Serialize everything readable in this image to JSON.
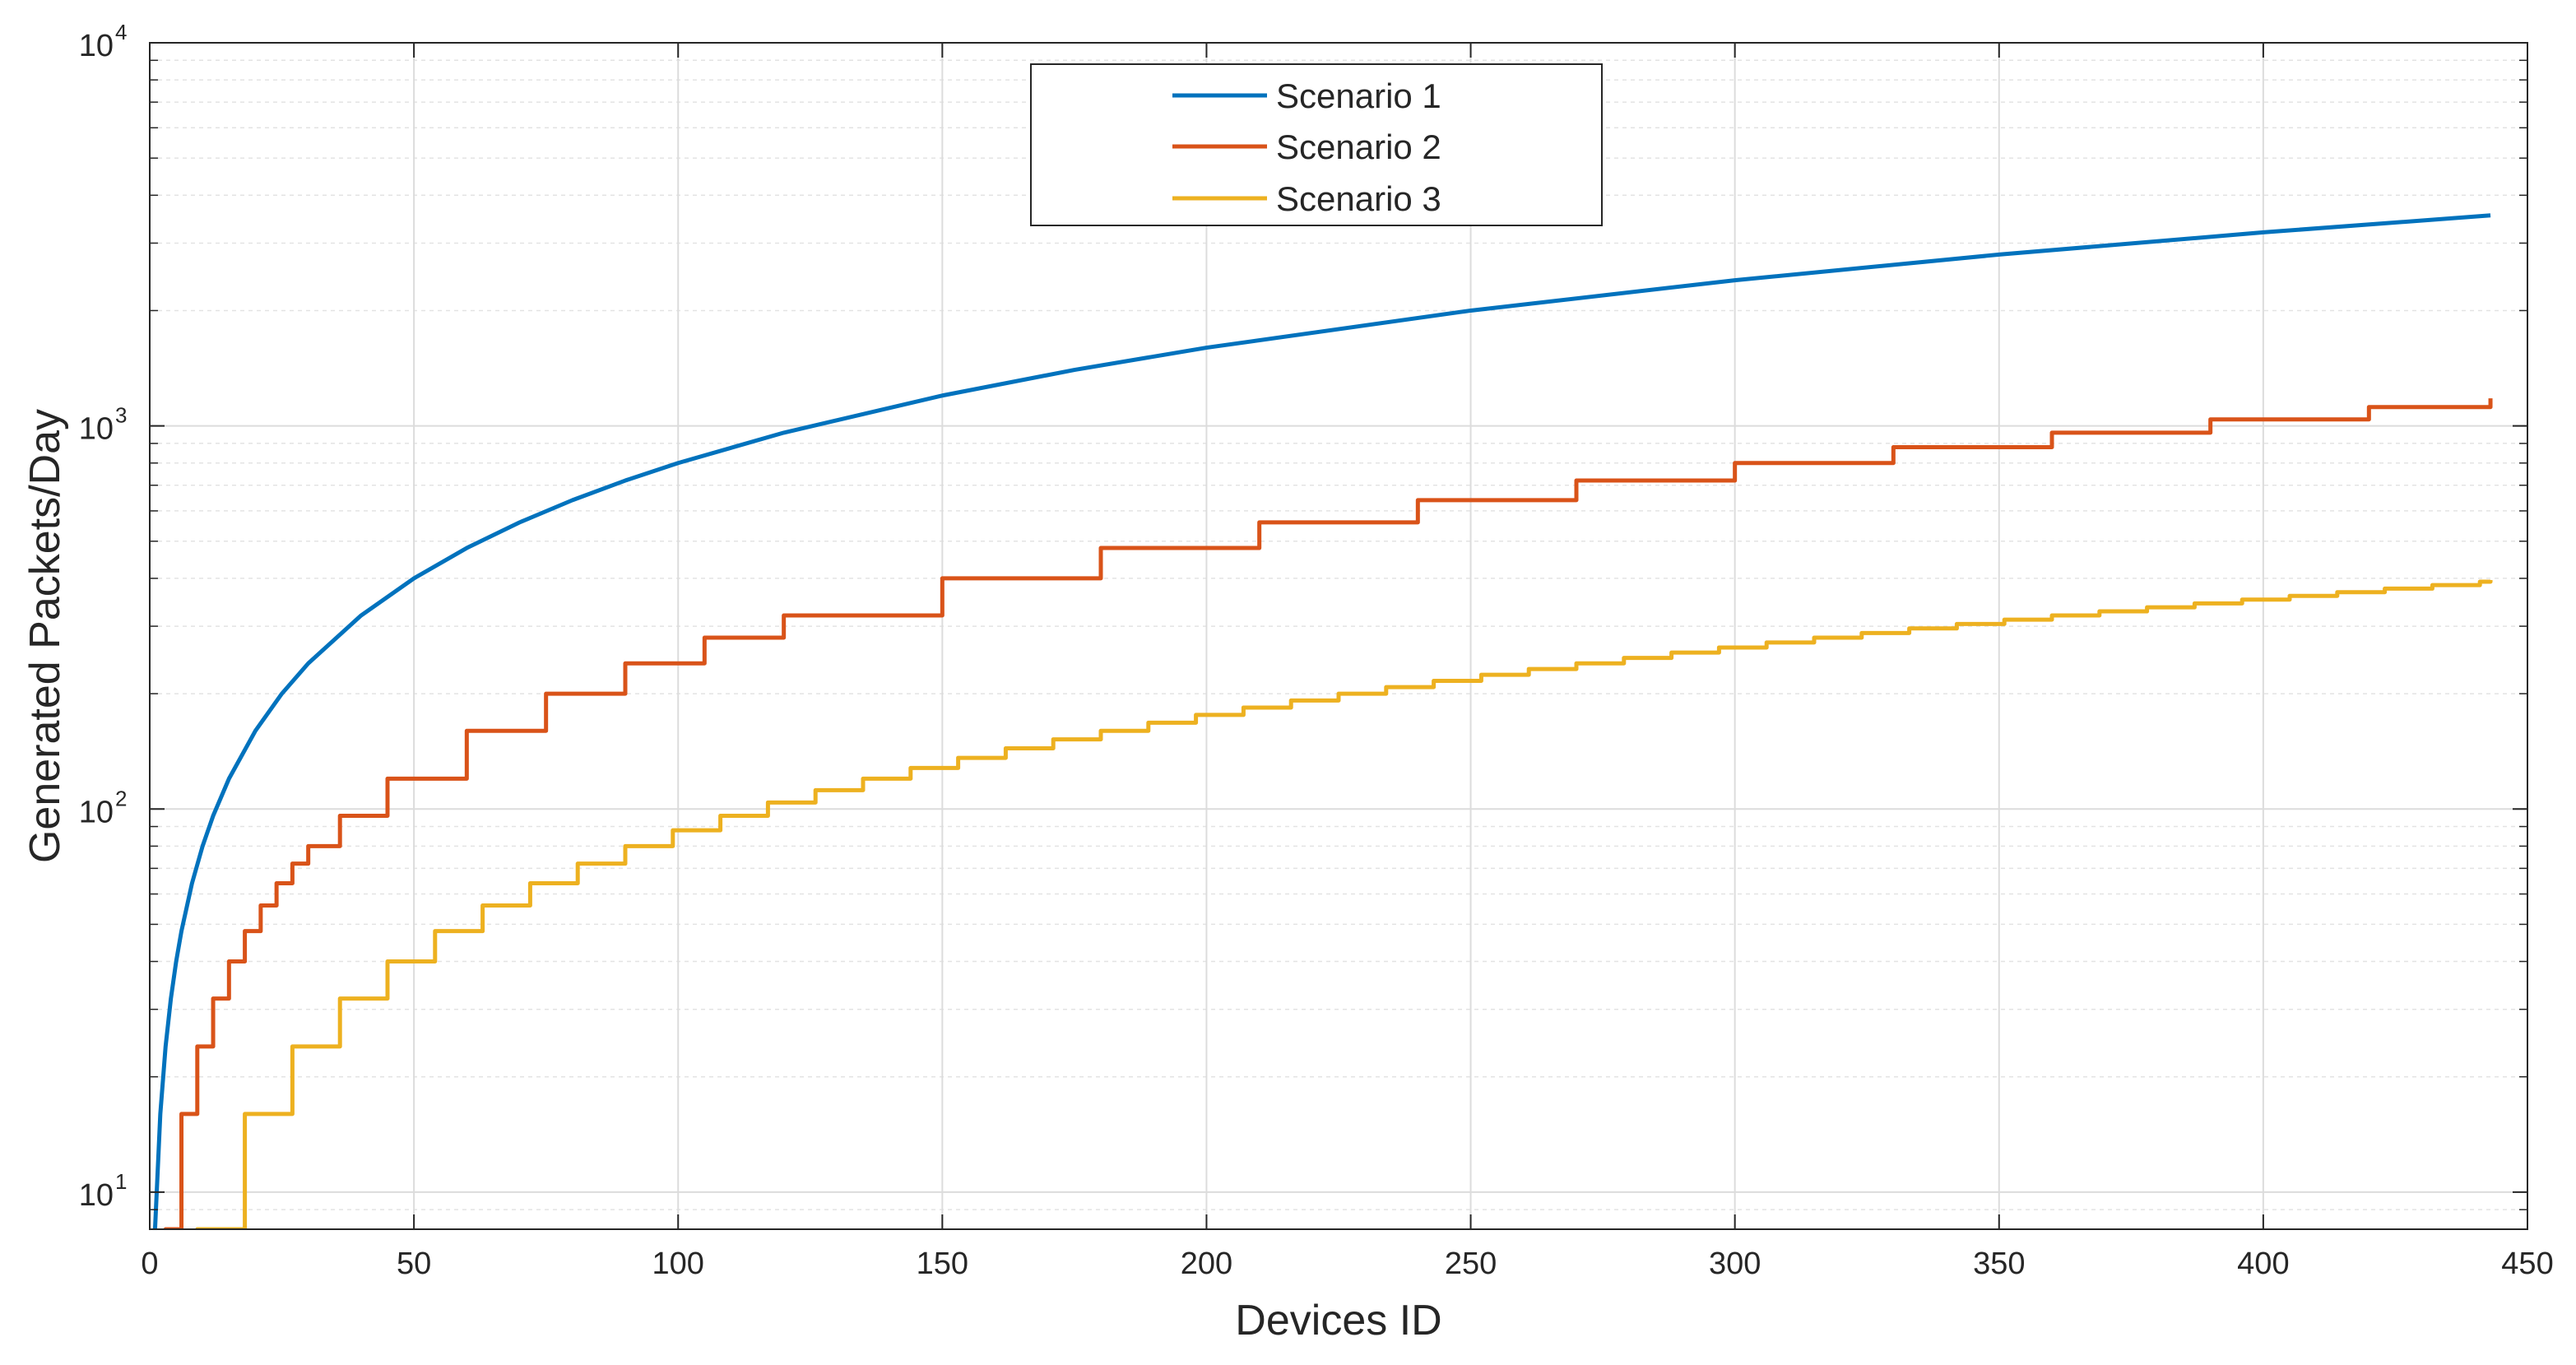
{
  "chart_data": {
    "type": "line",
    "title": "",
    "xlabel": "Devices ID",
    "ylabel": "Generated Packets/Day",
    "xlim": [
      0,
      450
    ],
    "ylim": [
      8,
      10000
    ],
    "yscale": "log",
    "grid": true,
    "legend_position": "top-center",
    "x_ticks": [
      0,
      50,
      100,
      150,
      200,
      250,
      300,
      350,
      400,
      450
    ],
    "x_tick_labels": [
      "0",
      "50",
      "100",
      "150",
      "200",
      "250",
      "300",
      "350",
      "400",
      "450"
    ],
    "y_ticks": [
      10,
      100,
      1000,
      10000
    ],
    "y_tick_labels": [
      {
        "base": "10",
        "exp": "1"
      },
      {
        "base": "10",
        "exp": "2"
      },
      {
        "base": "10",
        "exp": "3"
      },
      {
        "base": "10",
        "exp": "4"
      }
    ],
    "series": [
      {
        "name": "Scenario 1",
        "color": "#0072BD",
        "shape": "smooth",
        "x": [
          1,
          2,
          3,
          4,
          5,
          6,
          8,
          10,
          12,
          15,
          20,
          25,
          30,
          40,
          50,
          60,
          70,
          80,
          90,
          100,
          120,
          150,
          175,
          200,
          250,
          300,
          350,
          400,
          443
        ],
        "values": [
          8,
          16,
          24,
          32,
          40,
          48,
          64,
          80,
          96,
          120,
          160,
          200,
          240,
          320,
          400,
          480,
          560,
          640,
          720,
          800,
          960,
          1200,
          1400,
          1600,
          2000,
          2400,
          2800,
          3200,
          3544
        ]
      },
      {
        "name": "Scenario 2",
        "color": "#D95319",
        "shape": "staircase",
        "x": [
          3,
          6,
          9,
          12,
          15,
          18,
          21,
          24,
          27,
          30,
          36,
          45,
          60,
          75,
          90,
          105,
          120,
          150,
          180,
          210,
          240,
          270,
          300,
          330,
          360,
          390,
          420,
          443
        ],
        "values": [
          8,
          16,
          24,
          32,
          40,
          48,
          56,
          64,
          72,
          80,
          96,
          120,
          160,
          200,
          240,
          280,
          320,
          400,
          480,
          560,
          640,
          720,
          800,
          880,
          960,
          1040,
          1120,
          1180
        ]
      },
      {
        "name": "Scenario 3",
        "color": "#EDB120",
        "shape": "staircase",
        "x": [
          9,
          18,
          27,
          36,
          45,
          54,
          63,
          72,
          81,
          90,
          99,
          108,
          117,
          126,
          135,
          144,
          153,
          162,
          171,
          180,
          189,
          198,
          207,
          216,
          225,
          234,
          243,
          252,
          261,
          270,
          279,
          288,
          297,
          306,
          315,
          324,
          333,
          342,
          351,
          360,
          369,
          378,
          387,
          396,
          405,
          414,
          423,
          432,
          441,
          443
        ],
        "values": [
          8,
          16,
          24,
          32,
          40,
          48,
          56,
          64,
          72,
          80,
          88,
          96,
          104,
          112,
          120,
          128,
          136,
          144,
          152,
          160,
          168,
          176,
          184,
          192,
          200,
          208,
          216,
          224,
          232,
          240,
          248,
          256,
          264,
          272,
          280,
          288,
          296,
          304,
          312,
          320,
          328,
          336,
          344,
          352,
          360,
          368,
          376,
          384,
          392,
          396
        ]
      }
    ]
  }
}
